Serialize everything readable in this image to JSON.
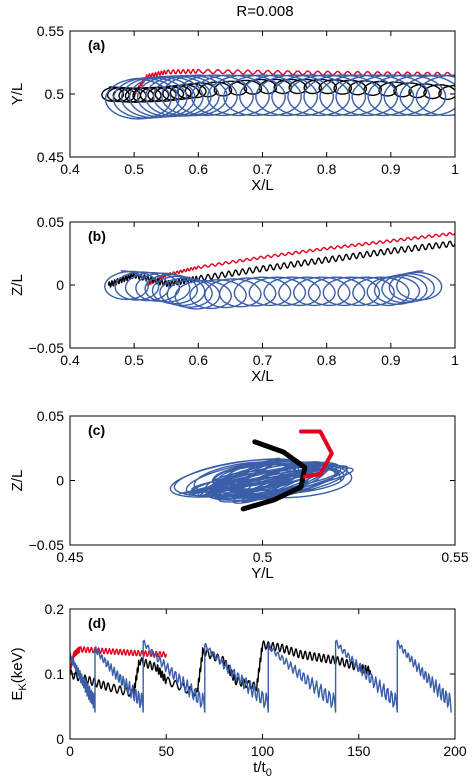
{
  "figure": {
    "title": "R=0.008"
  },
  "colors": {
    "black": "#000000",
    "blue": "#3a5fa8",
    "red": "#e3001b"
  },
  "chart_data": [
    {
      "id": "a",
      "type": "line",
      "panel_label": "(a)",
      "xlabel": "X/L",
      "ylabel": "Y/L",
      "xlim": [
        0.4,
        1.0
      ],
      "ylim": [
        0.45,
        0.55
      ],
      "xticks": [
        0.4,
        0.5,
        0.6,
        0.7,
        0.8,
        0.9,
        1.0
      ],
      "xtick_labels": [
        "0.4",
        "0.5",
        "0.6",
        "0.7",
        "0.8",
        "0.9",
        "1"
      ],
      "yticks": [
        0.45,
        0.5,
        0.55
      ],
      "ytick_labels": [
        "0.45",
        "0.5",
        "0.55"
      ],
      "series": [
        {
          "color": "red",
          "kind": "wave",
          "x": [
            0.5,
            0.52,
            0.55,
            0.6,
            0.7,
            0.8,
            0.9,
            1.0
          ],
          "y": [
            0.5,
            0.514,
            0.5175,
            0.518,
            0.5172,
            0.5165,
            0.516,
            0.5155
          ],
          "amp": 0.0015,
          "cycles": 45
        },
        {
          "color": "black",
          "kind": "loops",
          "x": [
            0.462,
            0.5,
            0.55,
            0.6,
            0.7,
            0.8,
            0.9,
            1.0
          ],
          "y": [
            0.5,
            0.499,
            0.5,
            0.503,
            0.506,
            0.506,
            0.504,
            0.501
          ],
          "amp": 0.0035,
          "cycles": 30
        },
        {
          "color": "blue",
          "kind": "loops",
          "x": [
            0.5,
            0.55,
            0.6,
            0.7,
            0.8,
            0.9,
            1.0
          ],
          "y": [
            0.496,
            0.498,
            0.499,
            0.499,
            0.499,
            0.499,
            0.499
          ],
          "amp": 0.01,
          "cycles": 24
        }
      ]
    },
    {
      "id": "b",
      "type": "line",
      "panel_label": "(b)",
      "xlabel": "X/L",
      "ylabel": "Z/L",
      "xlim": [
        0.4,
        1.0
      ],
      "ylim": [
        -0.05,
        0.05
      ],
      "xticks": [
        0.4,
        0.5,
        0.6,
        0.7,
        0.8,
        0.9,
        1.0
      ],
      "xtick_labels": [
        "0.4",
        "0.5",
        "0.6",
        "0.7",
        "0.8",
        "0.9",
        "1"
      ],
      "yticks": [
        -0.05,
        0,
        0.05
      ],
      "ytick_labels": [
        "−0.05",
        "0",
        "0.05"
      ],
      "series": [
        {
          "color": "red",
          "kind": "wave",
          "x": [
            0.52,
            0.55,
            0.6,
            0.7,
            0.8,
            0.9,
            1.0
          ],
          "y": [
            0.0,
            0.008,
            0.014,
            0.022,
            0.029,
            0.035,
            0.041
          ],
          "amp": 0.001,
          "cycles": 55
        },
        {
          "color": "black",
          "kind": "wave",
          "x": [
            0.46,
            0.5,
            0.55,
            0.6,
            0.7,
            0.8,
            0.9,
            1.0
          ],
          "y": [
            0.0,
            0.008,
            0.001,
            0.005,
            0.013,
            0.02,
            0.027,
            0.033
          ],
          "amp": 0.0022,
          "cycles": 65
        },
        {
          "color": "blue",
          "kind": "loops",
          "x": [
            0.48,
            0.55,
            0.6,
            0.7,
            0.8,
            0.9,
            0.95
          ],
          "y": [
            0.0,
            -0.002,
            -0.008,
            -0.005,
            -0.005,
            -0.005,
            0.0
          ],
          "amp": 0.007,
          "cycles": 26
        }
      ]
    },
    {
      "id": "c",
      "type": "line",
      "panel_label": "(c)",
      "xlabel": "Y/L",
      "ylabel": "Z/L",
      "xlim": [
        0.45,
        0.55
      ],
      "ylim": [
        -0.05,
        0.05
      ],
      "xticks": [
        0.45,
        0.5,
        0.55
      ],
      "xtick_labels": [
        "0.45",
        "0.5",
        "0.55"
      ],
      "yticks": [
        -0.05,
        0,
        0.05
      ],
      "ytick_labels": [
        "−0.05",
        "0",
        "0.05"
      ],
      "series": [
        {
          "color": "blue",
          "kind": "orbit",
          "x": [
            0.5
          ],
          "y": [
            0.0
          ],
          "rx": 0.014,
          "ry": 0.012,
          "loops": 34
        },
        {
          "color": "black",
          "kind": "arc",
          "x": [
            0.498,
            0.5055,
            0.511,
            0.51,
            0.503,
            0.495
          ],
          "y": [
            0.03,
            0.022,
            0.01,
            -0.005,
            -0.015,
            -0.022
          ],
          "width": 5
        },
        {
          "color": "red",
          "kind": "arc",
          "x": [
            0.511,
            0.515,
            0.518,
            0.515,
            0.51
          ],
          "y": [
            0.003,
            0.005,
            0.021,
            0.038,
            0.038
          ],
          "width": 4
        }
      ]
    },
    {
      "id": "d",
      "type": "line",
      "panel_label": "(d)",
      "xlabel": "t/t0",
      "ylabel": "EK(keV)",
      "xlim": [
        0,
        200
      ],
      "ylim": [
        0,
        0.2
      ],
      "xticks": [
        0,
        50,
        100,
        150,
        200
      ],
      "xtick_labels": [
        "0",
        "50",
        "100",
        "150",
        "200"
      ],
      "yticks": [
        0,
        0.1,
        0.2
      ],
      "ytick_labels": [
        "0",
        "0.1",
        "0.2"
      ],
      "series": [
        {
          "color": "red",
          "kind": "wave",
          "x": [
            0,
            2,
            5,
            20,
            35,
            50
          ],
          "y": [
            0.105,
            0.13,
            0.138,
            0.135,
            0.132,
            0.13
          ],
          "amp": 0.004,
          "cycles": 40
        },
        {
          "color": "black",
          "kind": "wave",
          "x": [
            0,
            10,
            20,
            33,
            36,
            45,
            50,
            66,
            69,
            80,
            86,
            97,
            100,
            110,
            120,
            130,
            140,
            150,
            156
          ],
          "y": [
            0.1,
            0.09,
            0.08,
            0.07,
            0.12,
            0.11,
            0.09,
            0.07,
            0.135,
            0.12,
            0.09,
            0.08,
            0.145,
            0.14,
            0.13,
            0.125,
            0.12,
            0.11,
            0.105
          ],
          "amp": 0.006,
          "cycles": 75
        },
        {
          "color": "blue",
          "kind": "sawtooth",
          "x": [
            0,
            13,
            38,
            70,
            103,
            138,
            170,
            198
          ],
          "y": [
            0.13,
            0.14,
            0.15,
            0.145,
            0.145,
            0.15,
            0.15,
            0.135
          ],
          "low": 0.055,
          "amp": 0.01,
          "cycles": 110
        }
      ]
    }
  ]
}
